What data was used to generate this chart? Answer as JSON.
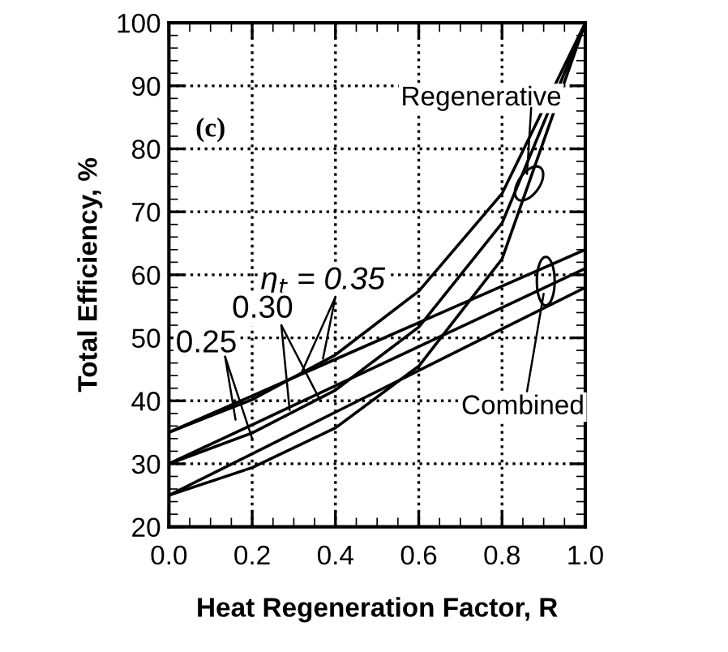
{
  "chart_data": {
    "type": "line",
    "xlabel": "Heat Regeneration Factor, R",
    "ylabel": "Total Efficiency, %",
    "x": [
      0,
      0.2,
      0.4,
      0.6,
      0.8,
      1.0
    ],
    "series": [
      {
        "color": "#000000",
        "values": [
          35,
          40.2,
          47.3,
          57.4,
          72.9,
          100
        ]
      },
      {
        "color": "#000000",
        "values": [
          30,
          34.9,
          41.7,
          51.7,
          68.2,
          100
        ]
      },
      {
        "color": "#000000",
        "values": [
          25,
          29.4,
          35.7,
          45.5,
          62.5,
          100
        ]
      },
      {
        "color": "#000000",
        "values": [
          35,
          40.8,
          46.6,
          52.4,
          58.2,
          64
        ]
      },
      {
        "color": "#000000",
        "values": [
          30,
          36.2,
          42.4,
          48.6,
          54.8,
          61
        ]
      },
      {
        "color": "#000000",
        "values": [
          25,
          31.6,
          38.2,
          44.8,
          51.4,
          58
        ]
      }
    ],
    "xlim": [
      0,
      1.0
    ],
    "ylim": [
      20,
      100
    ],
    "xticks": [
      {
        "value": 0,
        "label": "0.0"
      },
      0.2,
      0.4,
      0.6,
      0.8,
      {
        "value": 1.0,
        "label": "1.0"
      }
    ],
    "yticks": [
      20,
      30,
      40,
      50,
      60,
      70,
      80,
      90,
      100
    ],
    "grid": true,
    "marker": "none",
    "line_style": "solid",
    "legend": false,
    "annotations": [
      "(c)",
      {
        "text": "Regenerative",
        "x": 0.86,
        "y": 76
      },
      {
        "text": "Combined",
        "x": 0.9,
        "y": 57
      },
      {
        "text": "η$_{t}$ = 0.35",
        "x": 0.32,
        "y": 44.7
      },
      {
        "text": "0.30",
        "x": 0.36,
        "y": 40.5
      },
      {
        "text": "0.25",
        "x": 0.2,
        "y": 34
      }
    ]
  }
}
